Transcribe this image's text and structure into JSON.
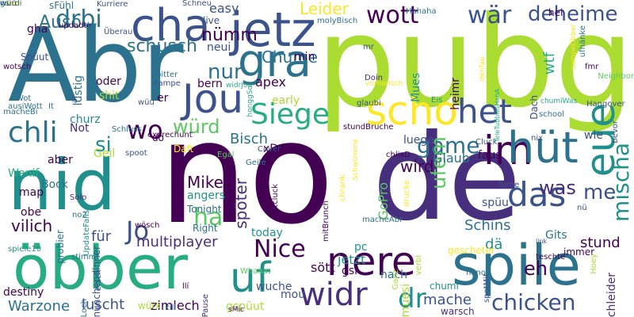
{
  "palette": [
    "#440154",
    "#472f7d",
    "#3b528b",
    "#2c728e",
    "#21908d",
    "#27ad81",
    "#5cc863",
    "#aadc32",
    "#fde725"
  ],
  "words": [
    {
      "t": "pubg",
      "c": "#aadc32"
    },
    {
      "t": "no",
      "c": "#440154"
    },
    {
      "t": "de",
      "c": "#472f7d"
    },
    {
      "t": "Abr",
      "c": "#2c728e"
    },
    {
      "t": "nid",
      "c": "#21908d"
    },
    {
      "t": "öbber",
      "c": "#27ad81"
    },
    {
      "t": "spile",
      "c": "#2c728e"
    },
    {
      "t": "jetz",
      "c": "#3b528b"
    },
    {
      "t": "gra",
      "c": "#2c728e"
    },
    {
      "t": "cha",
      "c": "#3b528b"
    },
    {
      "t": "nere",
      "c": "#440154"
    },
    {
      "t": "scho",
      "c": "#fde725"
    },
    {
      "t": "het",
      "c": "#3b528b"
    },
    {
      "t": "im",
      "c": "#440154"
    },
    {
      "t": "hüt",
      "c": "#2c728e"
    },
    {
      "t": "eue",
      "c": "#21908d"
    },
    {
      "t": "das",
      "c": "#3b528b"
    },
    {
      "t": "Jou",
      "c": "#3b528b"
    },
    {
      "t": "Siege",
      "c": "#27ad81"
    },
    {
      "t": "wo",
      "c": "#440154"
    },
    {
      "t": "chli",
      "c": "#2c728e"
    },
    {
      "t": "widr",
      "c": "#472f7d"
    },
    {
      "t": "uf",
      "c": "#21908d"
    },
    {
      "t": "drbi",
      "c": "#2c728e"
    },
    {
      "t": "wott",
      "c": "#440154"
    },
    {
      "t": "wär",
      "c": "#3b528b"
    },
    {
      "t": "deheime",
      "c": "#3b528b"
    },
    {
      "t": "schüsch",
      "c": "#2c728e"
    },
    {
      "t": "nur",
      "c": "#2c728e"
    },
    {
      "t": "würd",
      "c": "#5cc863"
    },
    {
      "t": "si",
      "c": "#21908d"
    },
    {
      "t": "game",
      "c": "#2c728e"
    },
    {
      "t": "ha",
      "c": "#5cc863"
    },
    {
      "t": "ufem",
      "c": "#5cc863"
    },
    {
      "t": "Jo",
      "c": "#3b528b"
    },
    {
      "t": "Nice",
      "c": "#440154"
    },
    {
      "t": "mischa",
      "c": "#21908d"
    },
    {
      "t": "me",
      "c": "#3b528b"
    },
    {
      "t": "was",
      "c": "#472f7d"
    },
    {
      "t": "chicken",
      "c": "#3b528b"
    },
    {
      "t": "eh",
      "c": "#440154"
    },
    {
      "t": "dr",
      "c": "#21908d"
    },
    {
      "t": "nümm",
      "c": "#440154"
    },
    {
      "t": "Chume",
      "c": "#2c728e"
    },
    {
      "t": "Leider",
      "c": "#fde725"
    },
    {
      "t": "Auso",
      "c": "#2c728e"
    },
    {
      "t": "Bisch",
      "c": "#2c728e"
    },
    {
      "t": "wird",
      "c": "#440154"
    },
    {
      "t": "Mike",
      "c": "#440154"
    },
    {
      "t": "vilich",
      "c": "#440154"
    },
    {
      "t": "für",
      "c": "#3b528b"
    },
    {
      "t": "multiplayer",
      "c": "#472f7d"
    },
    {
      "t": "mache",
      "c": "#3b528b"
    },
    {
      "t": "luscht",
      "c": "#3b528b"
    },
    {
      "t": "zimlech",
      "c": "#440154"
    },
    {
      "t": "Warzone",
      "c": "#2c728e"
    },
    {
      "t": "jetzt",
      "c": "#21908d"
    },
    {
      "t": "stund",
      "c": "#440154"
    },
    {
      "t": "dä",
      "c": "#21908d"
    },
    {
      "t": "Schins",
      "c": "#2c728e"
    },
    {
      "t": "Glaub",
      "c": "#2c728e"
    },
    {
      "t": "spöter",
      "c": "#472f7d"
    },
    {
      "t": "apex",
      "c": "#440154"
    },
    {
      "t": "easy",
      "c": "#3b528b"
    },
    {
      "t": "wtf",
      "c": "#27ad81"
    },
    {
      "t": "gha",
      "c": "#440154"
    },
    {
      "t": "sFühl",
      "c": "#2c728e"
    },
    {
      "t": "early",
      "c": "#aadc32"
    },
    {
      "t": "min",
      "c": "#440154"
    },
    {
      "t": "neui",
      "c": "#3b528b"
    },
    {
      "t": "sött",
      "c": "#440154"
    },
    {
      "t": "gsi",
      "c": "#440154"
    },
    {
      "t": "nach",
      "c": "#2c728e"
    },
    {
      "t": "pc",
      "c": "#21908d"
    },
    {
      "t": "oder",
      "c": "#440154"
    },
    {
      "t": "bern",
      "c": "#440154"
    },
    {
      "t": "shit",
      "c": "#aadc32"
    },
    {
      "t": "wie",
      "c": "#3b528b"
    },
    {
      "t": "faus",
      "c": "#440154"
    },
    {
      "t": "luege",
      "c": "#3b528b"
    },
    {
      "t": "Geil",
      "c": "#aadc32"
    },
    {
      "t": "Wenif",
      "c": "#27ad81"
    },
    {
      "t": "aber",
      "c": "#440154"
    },
    {
      "t": "Gits",
      "c": "#2c728e"
    },
    {
      "t": "spüu",
      "c": "#3b528b"
    },
    {
      "t": "today",
      "c": "#21908d"
    },
    {
      "t": "wuche",
      "c": "#3b528b"
    },
    {
      "t": "gspüut",
      "c": "#aadc32"
    },
    {
      "t": "churz",
      "c": "#21908d"
    },
    {
      "t": "Not",
      "c": "#472f7d"
    },
    {
      "t": "do",
      "c": "#440154"
    },
    {
      "t": "xD",
      "c": "#440154"
    },
    {
      "t": "er",
      "c": "#440154"
    },
    {
      "t": "heimr",
      "c": "#440154"
    },
    {
      "t": "Mues",
      "c": "#21908d"
    },
    {
      "t": "live",
      "c": "#3b528b"
    },
    {
      "t": "hei",
      "c": "#440154"
    },
    {
      "t": "angers",
      "c": "#21908d"
    },
    {
      "t": "mou",
      "c": "#3b528b"
    },
    {
      "t": "obe",
      "c": "#440154"
    },
    {
      "t": "map",
      "c": "#440154"
    },
    {
      "t": "Bock",
      "c": "#2c728e"
    },
    {
      "t": "Spüut",
      "c": "#3b528b"
    },
    {
      "t": "lustig",
      "c": "#2c728e"
    },
    {
      "t": "probier",
      "c": "#2c728e"
    },
    {
      "t": "destiny",
      "c": "#440154"
    },
    {
      "t": "nünchendinner",
      "c": "#3b528b"
    },
    {
      "t": "würk",
      "c": "#aadc32"
    },
    {
      "t": "Pause",
      "c": "#472f7d"
    },
    {
      "t": "Right",
      "c": "#2c728e"
    },
    {
      "t": "Tonight",
      "c": "#2c728e"
    },
    {
      "t": "Solo",
      "c": "#472f7d"
    },
    {
      "t": "wösch",
      "c": "#440154"
    },
    {
      "t": "Daft",
      "c": "#fde725"
    },
    {
      "t": "GoPro",
      "c": "#5cc863"
    },
    {
      "t": "muesi",
      "c": "#aadc32"
    },
    {
      "t": "gescheter",
      "c": "#fde725"
    },
    {
      "t": "nono",
      "c": "#2c728e"
    },
    {
      "t": "spotMit",
      "c": "#3b528b"
    },
    {
      "t": "chumi",
      "c": "#21908d"
    },
    {
      "t": "warsch",
      "c": "#472f7d"
    },
    {
      "t": "chleider",
      "c": "#472f7d"
    },
    {
      "t": "teschte",
      "c": "#440154"
    },
    {
      "t": "immer",
      "c": "#440154"
    },
    {
      "t": "link",
      "c": "#3b528b"
    },
    {
      "t": "furne",
      "c": "#3b528b"
    },
    {
      "t": "nü",
      "c": "#3b528b"
    },
    {
      "t": "Dach",
      "c": "#3b528b"
    },
    {
      "t": "fmr",
      "c": "#440154"
    },
    {
      "t": "Neighbor",
      "c": "#5cc863"
    },
    {
      "t": "Hangover",
      "c": "#3b528b"
    },
    {
      "t": "glaubi",
      "c": "#3b528b"
    },
    {
      "t": "Eis",
      "c": "#21908d"
    },
    {
      "t": "school",
      "c": "#2c728e"
    },
    {
      "t": "nix",
      "c": "#3b528b"
    },
    {
      "t": "Doin",
      "c": "#472f7d"
    },
    {
      "t": "stundBruche",
      "c": "#440154"
    },
    {
      "t": "Cover",
      "c": "#3b528b"
    },
    {
      "t": "Geile",
      "c": "#2c728e"
    },
    {
      "t": "Cluck",
      "c": "#3b528b"
    },
    {
      "t": "chlixD",
      "c": "#440154"
    },
    {
      "t": "daftcluck",
      "c": "#440154"
    },
    {
      "t": "mitBrunch",
      "c": "#440154"
    },
    {
      "t": "Egal",
      "c": "#5cc863"
    },
    {
      "t": "exprechunt",
      "c": "#440154"
    },
    {
      "t": "spoot",
      "c": "#3b528b"
    },
    {
      "t": "Schluss",
      "c": "#2c728e"
    },
    {
      "t": "updadte",
      "c": "#440154"
    },
    {
      "t": "by",
      "c": "#2c728e"
    },
    {
      "t": "Kurriere",
      "c": "#3b528b"
    },
    {
      "t": "Schneu",
      "c": "#3b528b"
    },
    {
      "t": "Hahaha",
      "c": "#2c728e"
    },
    {
      "t": "molyBisch",
      "c": "#2c728e"
    },
    {
      "t": "ufhänke",
      "c": "#2c728e"
    },
    {
      "t": "wotsch",
      "c": "#440154"
    },
    {
      "t": "macheBi",
      "c": "#2c728e"
    },
    {
      "t": "It",
      "c": "#2c728e"
    },
    {
      "t": "wüu",
      "c": "#3b528b"
    },
    {
      "t": "bitter",
      "c": "#2c728e"
    },
    {
      "t": "campe",
      "c": "#3b528b"
    },
    {
      "t": "Überau",
      "c": "#3b528b"
    },
    {
      "t": "bevor",
      "c": "#3b528b"
    },
    {
      "t": "stimmt",
      "c": "#2c728e"
    },
    {
      "t": "spiele10",
      "c": "#21908d"
    },
    {
      "t": "Loch",
      "c": "#2c728e"
    },
    {
      "t": "llí",
      "c": "#440154"
    },
    {
      "t": "Whaaat",
      "c": "#5cc863"
    },
    {
      "t": "kill",
      "c": "#2c728e"
    },
    {
      "t": "ersch",
      "c": "#3b528b"
    },
    {
      "t": "no2",
      "c": "#2c728e"
    },
    {
      "t": "Ganz",
      "c": "#aadc32"
    },
    {
      "t": "macheAbr",
      "c": "#2c728e"
    },
    {
      "t": "verbl",
      "c": "#aadc32"
    },
    {
      "t": "Hoey",
      "c": "#aadc32"
    },
    {
      "t": "sMic",
      "c": "#440154"
    },
    {
      "t": "honggSo",
      "c": "#27ad81"
    },
    {
      "t": "widrJou",
      "c": "#27ad81"
    },
    {
      "t": "chumiWas",
      "c": "#27ad81"
    },
    {
      "t": "TeleTubbiesHahA",
      "c": "#27ad81"
    },
    {
      "t": "denfau",
      "c": "#fde725"
    },
    {
      "t": "drucke",
      "c": "#fde725"
    },
    {
      "t": "vorherIsch",
      "c": "#fde725"
    },
    {
      "t": "campeÖbber",
      "c": "#fde725"
    },
    {
      "t": "Schwümme",
      "c": "#fde725"
    },
    {
      "t": "chrank",
      "c": "#fde725"
    },
    {
      "t": "UpdateFalls",
      "c": "#21908d"
    },
    {
      "t": "ar",
      "c": "#3b528b"
    },
    {
      "t": "mr",
      "c": "#3b528b"
    },
    {
      "t": "Wot",
      "c": "#2c728e"
    },
    {
      "t": "ausiWott",
      "c": "#2c728e"
    },
    {
      "t": "nörie",
      "c": "#fde725"
    },
    {
      "t": "würdi",
      "c": "#2c728e"
    },
    {
      "t": "gsi",
      "c": "#21908d"
    },
    {
      "t": "wuü",
      "c": "#3b528b"
    }
  ]
}
